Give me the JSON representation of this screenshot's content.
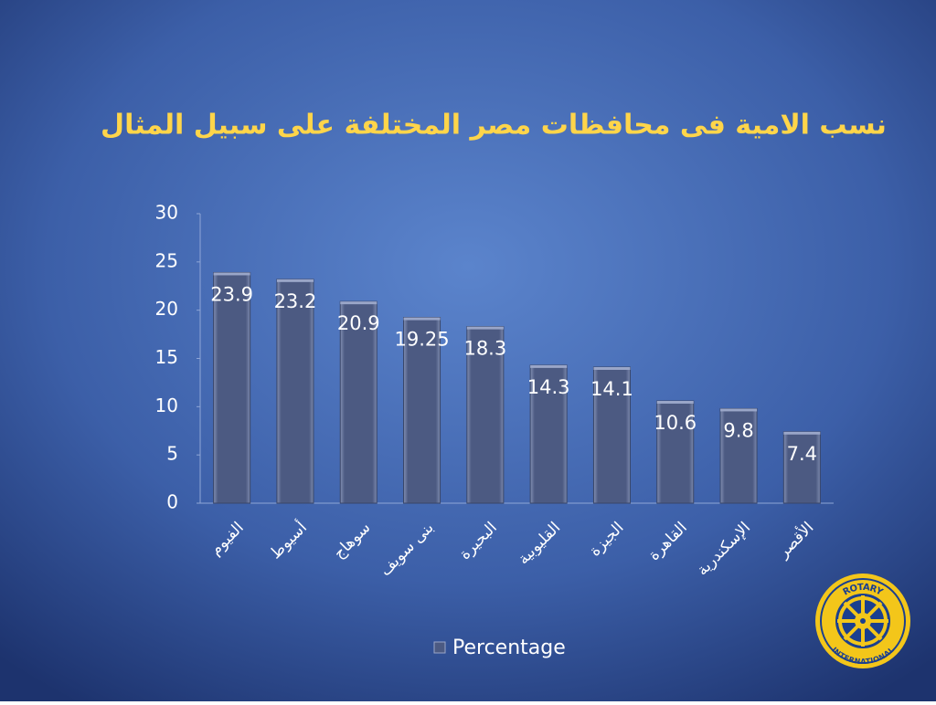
{
  "chart_data": {
    "type": "bar",
    "title": "نسب الامية فى محافظات مصر المختلفة على سبيل المثال",
    "categories": [
      "الفيوم",
      "أسيوط",
      "سوهاج",
      "بنى سويف",
      "البحيرة",
      "القليوبية",
      "الجيزة",
      "القاهرة",
      "الإسكندرية",
      "الأقصر"
    ],
    "series": [
      {
        "name": "Percentage",
        "color": "#4c5a82",
        "values": [
          23.9,
          23.2,
          20.9,
          19.25,
          18.3,
          14.3,
          14.1,
          10.6,
          9.8,
          7.4
        ]
      }
    ],
    "ylim": [
      0,
      30
    ],
    "yticks": [
      0,
      5,
      10,
      15,
      20,
      25,
      30
    ],
    "grid": false,
    "legend": "bottom"
  },
  "logo": {
    "top": "ROTARY",
    "bottom": "INTERNATIONAL"
  }
}
